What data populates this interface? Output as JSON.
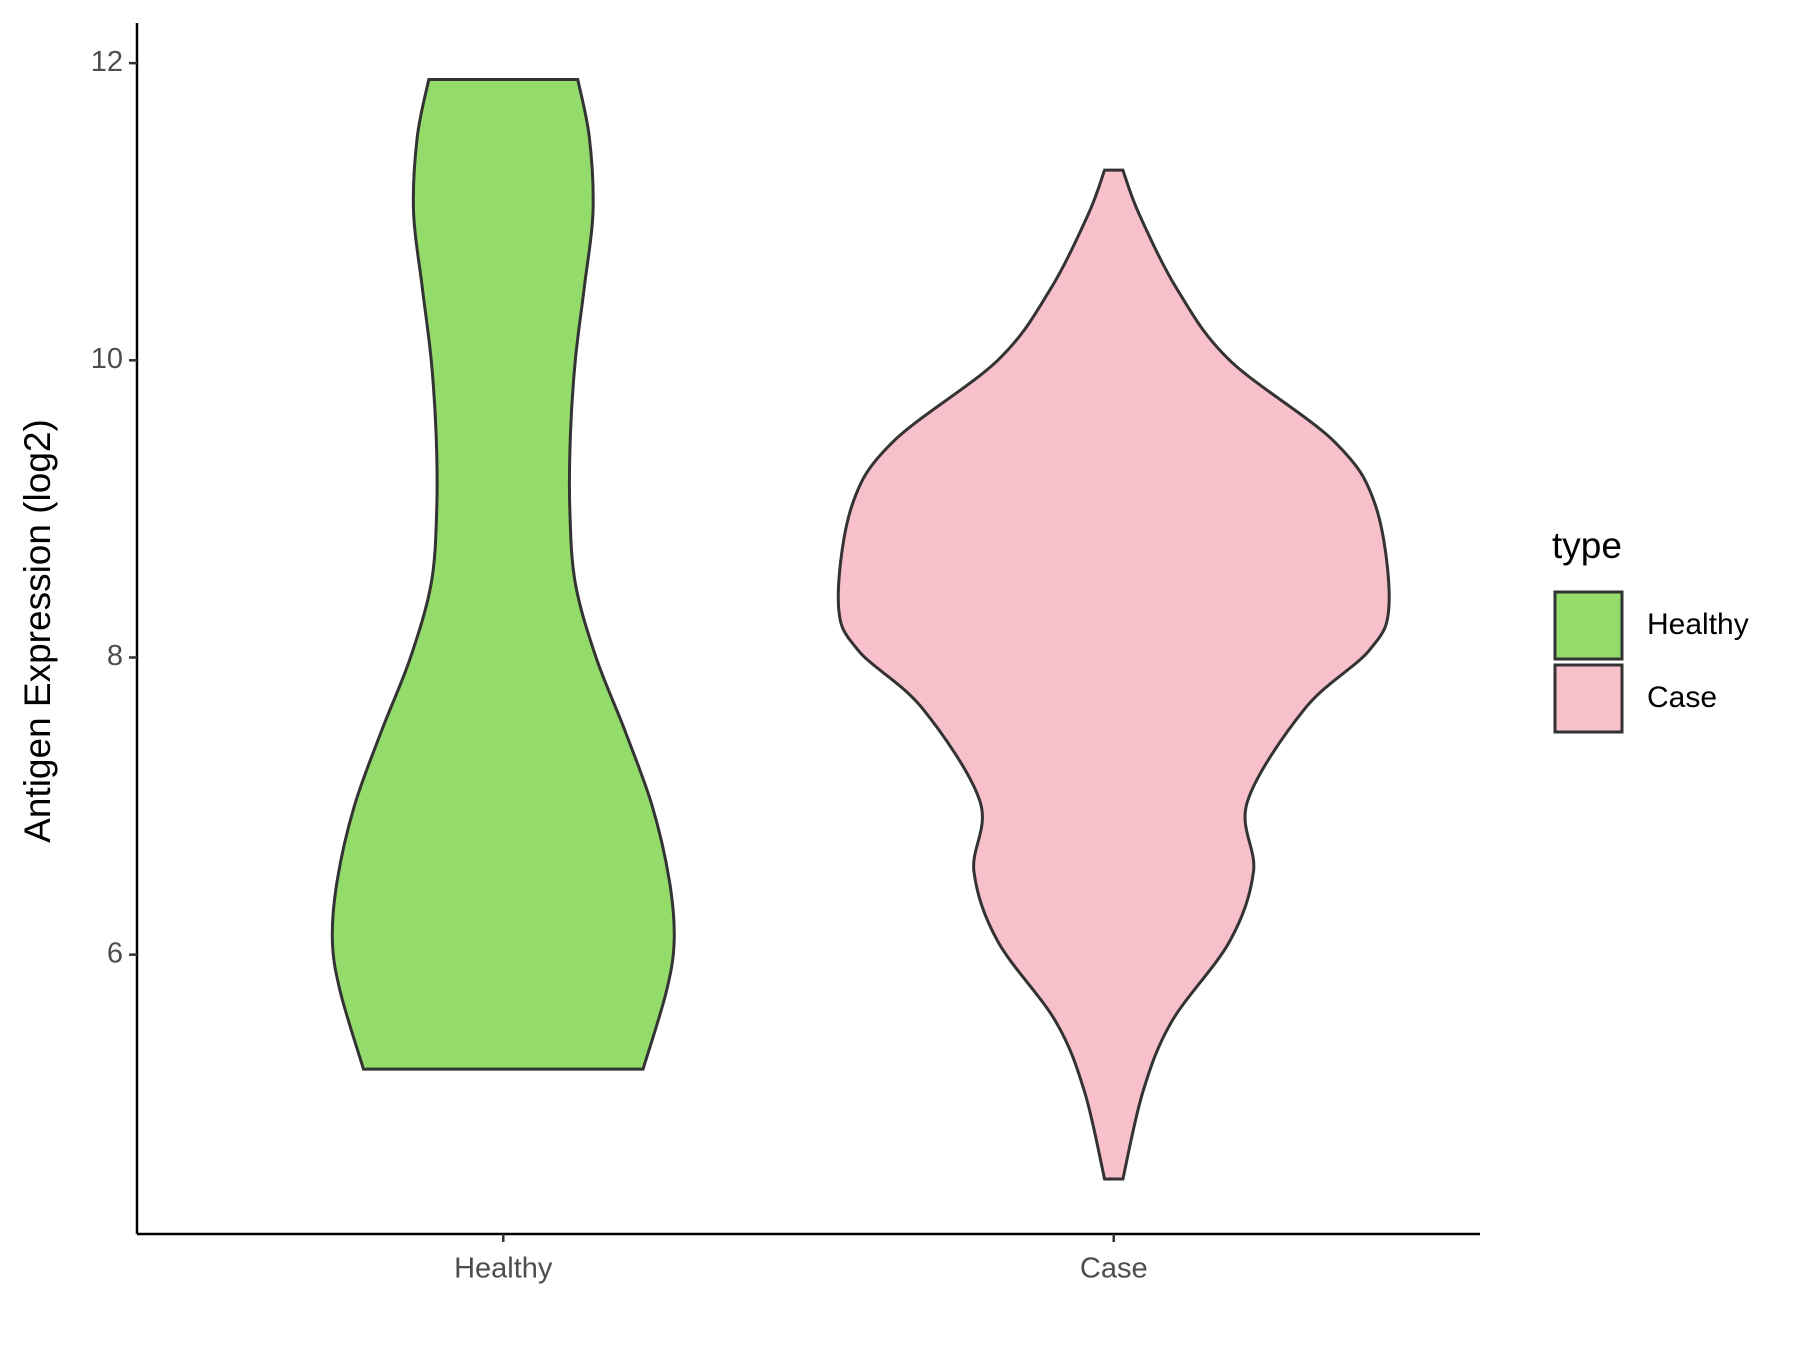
{
  "chart_data": {
    "type": "violin",
    "y_label": "Antigen Expression (log2)",
    "categories": [
      "Healthy",
      "Case"
    ],
    "legend_title": "type",
    "series": [
      {
        "name": "Healthy",
        "color": "#93dc6b",
        "y": [
          11.89,
          11.5,
          11.0,
          10.5,
          10.0,
          9.5,
          9.0,
          8.5,
          8.0,
          7.5,
          7.0,
          6.5,
          6.1,
          5.75,
          5.23
        ],
        "widths": [
          0.122,
          0.141,
          0.147,
          0.133,
          0.118,
          0.11,
          0.109,
          0.118,
          0.152,
          0.2,
          0.244,
          0.272,
          0.28,
          0.267,
          0.229
        ]
      },
      {
        "name": "Case",
        "color": "#f8c0cb",
        "y": [
          11.28,
          10.98,
          10.47,
          10.0,
          9.45,
          9.02,
          8.36,
          8.05,
          7.66,
          7.03,
          6.56,
          6.09,
          5.55,
          5.08,
          4.49
        ],
        "widths": [
          0.015,
          0.042,
          0.105,
          0.19,
          0.362,
          0.429,
          0.451,
          0.419,
          0.314,
          0.219,
          0.229,
          0.19,
          0.095,
          0.048,
          0.015
        ]
      }
    ],
    "ylim": [
      4.12,
      12.27
    ],
    "yticks": [
      6,
      8,
      10,
      12
    ],
    "legend": "right"
  }
}
